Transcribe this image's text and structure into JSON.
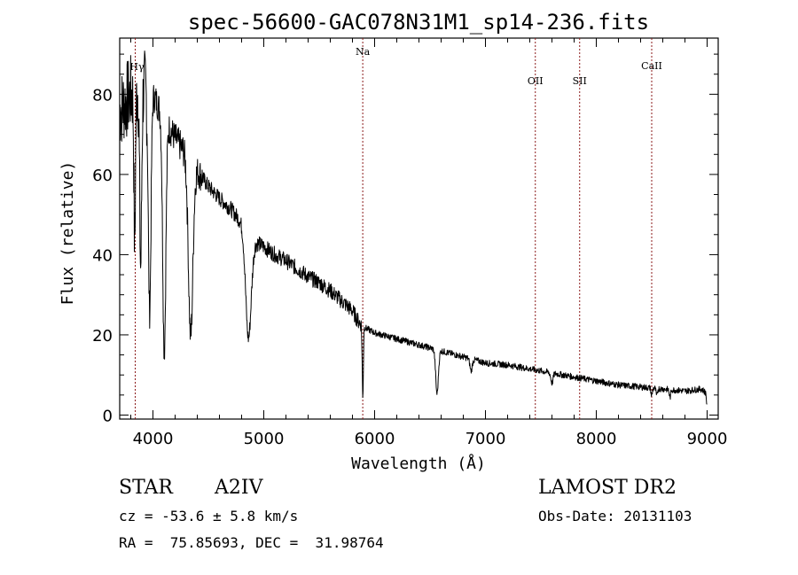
{
  "chart_data": {
    "type": "line",
    "title": "spec-56600-GAC078N31M1_sp14-236.fits",
    "xlabel": "Wavelength (Å)",
    "ylabel": "Flux (relative)",
    "xlim": [
      3700,
      9100
    ],
    "ylim": [
      -1,
      94
    ],
    "xticks": [
      4000,
      5000,
      6000,
      7000,
      8000,
      9000
    ],
    "yticks": [
      0,
      20,
      40,
      60,
      80
    ],
    "grid": false,
    "line_color": "#000000",
    "marker_color": "#8b1a1a",
    "continuum": [
      [
        3700,
        76
      ],
      [
        3800,
        80
      ],
      [
        3900,
        82
      ],
      [
        4000,
        80
      ],
      [
        4100,
        74
      ],
      [
        4200,
        69
      ],
      [
        4300,
        65
      ],
      [
        4400,
        61
      ],
      [
        4500,
        57
      ],
      [
        4600,
        54
      ],
      [
        4700,
        51.5
      ],
      [
        4800,
        48
      ],
      [
        4900,
        43.5
      ],
      [
        5000,
        42
      ],
      [
        5100,
        40
      ],
      [
        5200,
        38.5
      ],
      [
        5300,
        36.5
      ],
      [
        5400,
        34.5
      ],
      [
        5500,
        33
      ],
      [
        5600,
        31
      ],
      [
        5700,
        28.5
      ],
      [
        5800,
        26
      ],
      [
        5850,
        23.5
      ],
      [
        5900,
        22
      ],
      [
        6000,
        20.5
      ],
      [
        6200,
        19
      ],
      [
        6400,
        17.5
      ],
      [
        6600,
        16
      ],
      [
        6800,
        14.5
      ],
      [
        7000,
        13
      ],
      [
        7200,
        12.5
      ],
      [
        7400,
        11.5
      ],
      [
        7600,
        10.5
      ],
      [
        7800,
        9.5
      ],
      [
        8000,
        8.5
      ],
      [
        8200,
        7.5
      ],
      [
        8400,
        7
      ],
      [
        8600,
        6.5
      ],
      [
        8800,
        6
      ],
      [
        8950,
        6.5
      ],
      [
        8990,
        5.5
      ],
      [
        9000,
        1
      ]
    ],
    "absorption_lines": [
      {
        "center": 3835,
        "depth": 38,
        "width": 7
      },
      {
        "center": 3889,
        "depth": 45,
        "width": 9
      },
      {
        "center": 3970,
        "depth": 55,
        "width": 12
      },
      {
        "center": 4102,
        "depth": 58,
        "width": 14
      },
      {
        "center": 4340,
        "depth": 44,
        "width": 20
      },
      {
        "center": 4861,
        "depth": 26,
        "width": 25
      },
      {
        "center": 5893,
        "depth": 18,
        "width": 5
      },
      {
        "center": 6563,
        "depth": 11,
        "width": 12
      },
      {
        "center": 6870,
        "depth": 3,
        "width": 10
      },
      {
        "center": 7600,
        "depth": 2.5,
        "width": 10
      },
      {
        "center": 8500,
        "depth": 2,
        "width": 6
      },
      {
        "center": 8545,
        "depth": 2,
        "width": 6
      },
      {
        "center": 8665,
        "depth": 2,
        "width": 6
      }
    ],
    "noise": [
      {
        "from": 3700,
        "to": 3950,
        "amplitude": 10
      },
      {
        "from": 3950,
        "to": 4450,
        "amplitude": 4
      },
      {
        "from": 4450,
        "to": 5900,
        "amplitude": 2
      },
      {
        "from": 5900,
        "to": 9000,
        "amplitude": 0.8
      }
    ],
    "line_markers": [
      {
        "label": "Hγ",
        "wavelength": 3840
      },
      {
        "label": "Na",
        "wavelength": 5893
      },
      {
        "label": "OII",
        "wavelength": 7450
      },
      {
        "label": "SII",
        "wavelength": 7850
      },
      {
        "label": "CaII",
        "wavelength": 8500
      }
    ]
  },
  "info": {
    "class": "STAR",
    "subclass": "A2IV",
    "survey": "LAMOST DR2",
    "velocity": "cz = -53.6 ± 5.8 km/s",
    "obs_date": "Obs-Date: 20131103",
    "coords": "RA =  75.85693, DEC =  31.98764"
  }
}
